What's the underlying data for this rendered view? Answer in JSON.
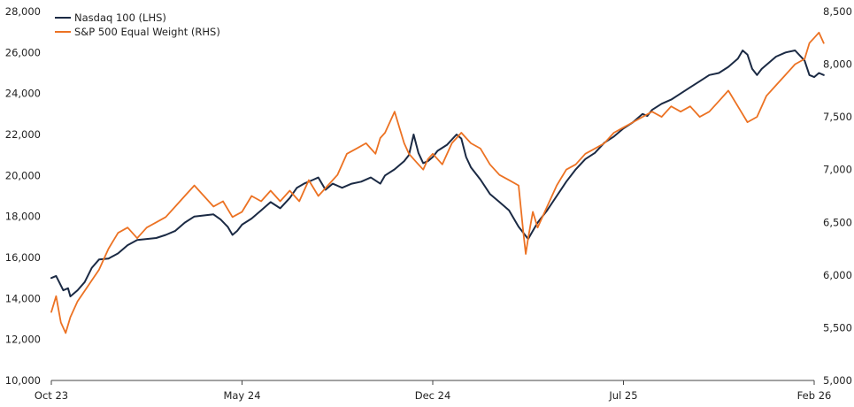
{
  "chart_data": {
    "type": "line",
    "title": "",
    "xlabel": "",
    "grid": false,
    "legend_position": "top-left",
    "x_ticks": [
      "Oct 23",
      "May 24",
      "Dec 24",
      "Jul 25",
      "Feb 26"
    ],
    "left_axis": {
      "ticks": [
        "10,000",
        "12,000",
        "14,000",
        "16,000",
        "18,000",
        "20,000",
        "22,000",
        "24,000",
        "26,000",
        "28,000"
      ],
      "range": [
        10000,
        28000
      ]
    },
    "right_axis": {
      "ticks": [
        "5,000",
        "5,500",
        "6,000",
        "6,500",
        "7,000",
        "7,500",
        "8,000",
        "8,500"
      ],
      "range": [
        5000,
        8500
      ]
    },
    "series": [
      {
        "name": "Nasdaq 100 (LHS)",
        "axis": "left",
        "color": "#1b2a44",
        "points": [
          [
            0.0,
            15000
          ],
          [
            0.1,
            15100
          ],
          [
            0.25,
            14400
          ],
          [
            0.35,
            14500
          ],
          [
            0.4,
            14100
          ],
          [
            0.55,
            14400
          ],
          [
            0.7,
            14800
          ],
          [
            0.85,
            15500
          ],
          [
            1.0,
            15900
          ],
          [
            1.2,
            15950
          ],
          [
            1.4,
            16200
          ],
          [
            1.6,
            16600
          ],
          [
            1.8,
            16850
          ],
          [
            2.0,
            16900
          ],
          [
            2.2,
            16950
          ],
          [
            2.4,
            17100
          ],
          [
            2.6,
            17300
          ],
          [
            2.8,
            17700
          ],
          [
            3.0,
            18000
          ],
          [
            3.2,
            18050
          ],
          [
            3.4,
            18100
          ],
          [
            3.55,
            17850
          ],
          [
            3.7,
            17500
          ],
          [
            3.8,
            17100
          ],
          [
            3.9,
            17300
          ],
          [
            4.0,
            17600
          ],
          [
            4.2,
            17900
          ],
          [
            4.4,
            18300
          ],
          [
            4.6,
            18700
          ],
          [
            4.8,
            18400
          ],
          [
            5.0,
            18900
          ],
          [
            5.15,
            19400
          ],
          [
            5.3,
            19600
          ],
          [
            5.5,
            19800
          ],
          [
            5.6,
            19900
          ],
          [
            5.75,
            19300
          ],
          [
            5.9,
            19600
          ],
          [
            6.1,
            19400
          ],
          [
            6.3,
            19600
          ],
          [
            6.5,
            19700
          ],
          [
            6.7,
            19900
          ],
          [
            6.9,
            19600
          ],
          [
            7.0,
            20000
          ],
          [
            7.2,
            20300
          ],
          [
            7.4,
            20700
          ],
          [
            7.5,
            21000
          ],
          [
            7.6,
            22000
          ],
          [
            7.7,
            21100
          ],
          [
            7.8,
            20600
          ],
          [
            7.9,
            20700
          ],
          [
            8.0,
            20900
          ],
          [
            8.1,
            21200
          ],
          [
            8.3,
            21500
          ],
          [
            8.5,
            22000
          ],
          [
            8.6,
            21800
          ],
          [
            8.7,
            20900
          ],
          [
            8.8,
            20400
          ],
          [
            9.0,
            19800
          ],
          [
            9.2,
            19100
          ],
          [
            9.4,
            18700
          ],
          [
            9.6,
            18300
          ],
          [
            9.8,
            17500
          ],
          [
            10.0,
            16900
          ],
          [
            10.1,
            17300
          ],
          [
            10.2,
            17700
          ],
          [
            10.4,
            18300
          ],
          [
            10.6,
            19000
          ],
          [
            10.8,
            19700
          ],
          [
            11.0,
            20300
          ],
          [
            11.2,
            20800
          ],
          [
            11.4,
            21100
          ],
          [
            11.6,
            21600
          ],
          [
            11.8,
            21900
          ],
          [
            12.0,
            22300
          ],
          [
            12.2,
            22600
          ],
          [
            12.4,
            23000
          ],
          [
            12.5,
            22900
          ],
          [
            12.6,
            23200
          ],
          [
            12.8,
            23500
          ],
          [
            13.0,
            23700
          ],
          [
            13.2,
            24000
          ],
          [
            13.4,
            24300
          ],
          [
            13.6,
            24600
          ],
          [
            13.8,
            24900
          ],
          [
            14.0,
            25000
          ],
          [
            14.2,
            25300
          ],
          [
            14.4,
            25700
          ],
          [
            14.5,
            26100
          ],
          [
            14.6,
            25900
          ],
          [
            14.7,
            25200
          ],
          [
            14.8,
            24900
          ],
          [
            14.9,
            25200
          ],
          [
            15.0,
            25400
          ],
          [
            15.2,
            25800
          ],
          [
            15.4,
            26000
          ],
          [
            15.6,
            26100
          ],
          [
            15.8,
            25600
          ],
          [
            15.9,
            24900
          ],
          [
            16.0,
            24800
          ],
          [
            16.1,
            25000
          ],
          [
            16.2,
            24900
          ]
        ]
      },
      {
        "name": "S&P 500 Equal Weight (RHS)",
        "axis": "right",
        "color": "#ec7223",
        "points": [
          [
            0.0,
            5650
          ],
          [
            0.1,
            5800
          ],
          [
            0.2,
            5550
          ],
          [
            0.3,
            5450
          ],
          [
            0.4,
            5600
          ],
          [
            0.55,
            5750
          ],
          [
            0.7,
            5850
          ],
          [
            0.85,
            5950
          ],
          [
            1.0,
            6050
          ],
          [
            1.2,
            6250
          ],
          [
            1.4,
            6400
          ],
          [
            1.6,
            6450
          ],
          [
            1.8,
            6350
          ],
          [
            2.0,
            6450
          ],
          [
            2.2,
            6500
          ],
          [
            2.4,
            6550
          ],
          [
            2.6,
            6650
          ],
          [
            2.8,
            6750
          ],
          [
            3.0,
            6850
          ],
          [
            3.2,
            6750
          ],
          [
            3.4,
            6650
          ],
          [
            3.6,
            6700
          ],
          [
            3.8,
            6550
          ],
          [
            4.0,
            6600
          ],
          [
            4.2,
            6750
          ],
          [
            4.4,
            6700
          ],
          [
            4.6,
            6800
          ],
          [
            4.8,
            6700
          ],
          [
            5.0,
            6800
          ],
          [
            5.2,
            6700
          ],
          [
            5.4,
            6900
          ],
          [
            5.6,
            6750
          ],
          [
            5.8,
            6850
          ],
          [
            6.0,
            6950
          ],
          [
            6.2,
            7150
          ],
          [
            6.4,
            7200
          ],
          [
            6.6,
            7250
          ],
          [
            6.8,
            7150
          ],
          [
            6.9,
            7300
          ],
          [
            7.0,
            7350
          ],
          [
            7.1,
            7450
          ],
          [
            7.2,
            7550
          ],
          [
            7.3,
            7400
          ],
          [
            7.4,
            7250
          ],
          [
            7.5,
            7150
          ],
          [
            7.6,
            7100
          ],
          [
            7.7,
            7050
          ],
          [
            7.8,
            7000
          ],
          [
            7.9,
            7100
          ],
          [
            8.0,
            7150
          ],
          [
            8.2,
            7050
          ],
          [
            8.4,
            7250
          ],
          [
            8.6,
            7350
          ],
          [
            8.7,
            7300
          ],
          [
            8.8,
            7250
          ],
          [
            9.0,
            7200
          ],
          [
            9.2,
            7050
          ],
          [
            9.4,
            6950
          ],
          [
            9.6,
            6900
          ],
          [
            9.8,
            6850
          ],
          [
            9.9,
            6400
          ],
          [
            9.95,
            6200
          ],
          [
            10.0,
            6350
          ],
          [
            10.1,
            6600
          ],
          [
            10.2,
            6450
          ],
          [
            10.4,
            6650
          ],
          [
            10.6,
            6850
          ],
          [
            10.8,
            7000
          ],
          [
            11.0,
            7050
          ],
          [
            11.2,
            7150
          ],
          [
            11.4,
            7200
          ],
          [
            11.6,
            7250
          ],
          [
            11.8,
            7350
          ],
          [
            12.0,
            7400
          ],
          [
            12.2,
            7450
          ],
          [
            12.4,
            7500
          ],
          [
            12.6,
            7550
          ],
          [
            12.8,
            7500
          ],
          [
            13.0,
            7600
          ],
          [
            13.2,
            7550
          ],
          [
            13.4,
            7600
          ],
          [
            13.6,
            7500
          ],
          [
            13.8,
            7550
          ],
          [
            14.0,
            7650
          ],
          [
            14.2,
            7750
          ],
          [
            14.4,
            7600
          ],
          [
            14.6,
            7450
          ],
          [
            14.8,
            7500
          ],
          [
            15.0,
            7700
          ],
          [
            15.2,
            7800
          ],
          [
            15.4,
            7900
          ],
          [
            15.6,
            8000
          ],
          [
            15.8,
            8050
          ],
          [
            15.9,
            8200
          ],
          [
            16.0,
            8250
          ],
          [
            16.1,
            8300
          ],
          [
            16.2,
            8200
          ]
        ]
      }
    ]
  }
}
